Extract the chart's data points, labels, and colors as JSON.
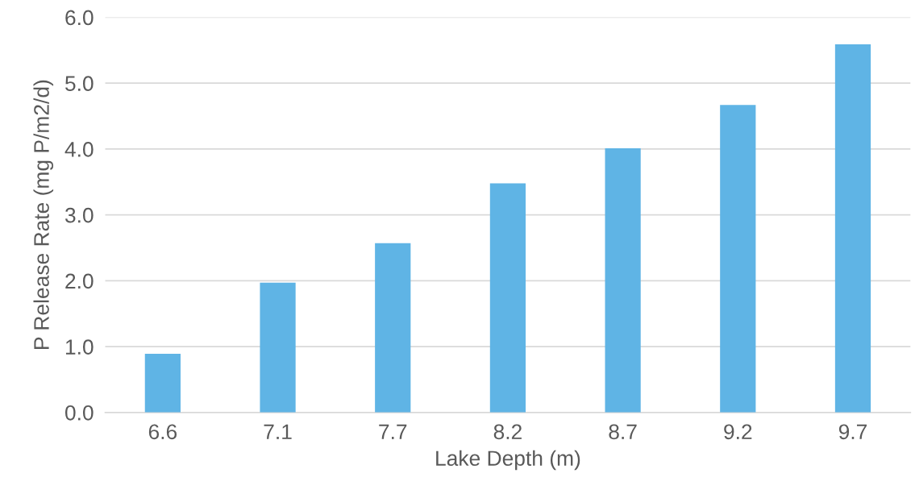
{
  "chart_data": {
    "type": "bar",
    "xlabel": "Lake Depth (m)",
    "ylabel": "P Release Rate (mg P/m2/d)",
    "categories": [
      "6.6",
      "7.1",
      "7.7",
      "8.2",
      "8.7",
      "9.2",
      "9.7"
    ],
    "values": [
      0.89,
      1.97,
      2.57,
      3.48,
      4.01,
      4.67,
      5.59
    ],
    "color": "#5fb4e5",
    "ylim": [
      0,
      6
    ],
    "yticks": [
      {
        "value": 0,
        "label": "0.0"
      },
      {
        "value": 1,
        "label": "1.0"
      },
      {
        "value": 2,
        "label": "2.0"
      },
      {
        "value": 3,
        "label": "3.0"
      },
      {
        "value": 4,
        "label": "4.0"
      },
      {
        "value": 5,
        "label": "5.0"
      },
      {
        "value": 6,
        "label": "6.0"
      }
    ],
    "grid": "y"
  }
}
